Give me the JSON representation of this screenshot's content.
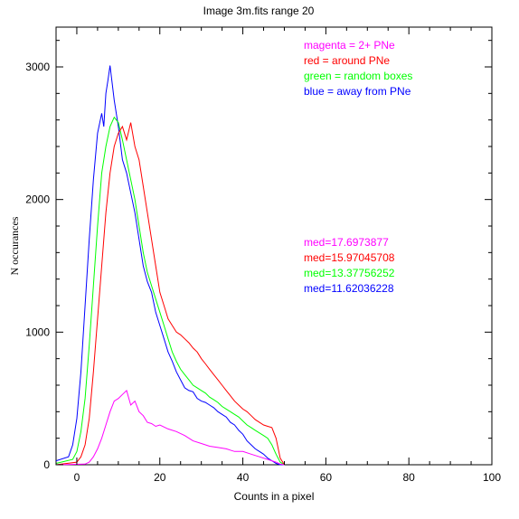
{
  "chart_data": {
    "type": "line",
    "title": "Image 3m.fits   range 20",
    "xlabel": "Counts in a pixel",
    "ylabel": "N  occurances",
    "xlim": [
      -5,
      100
    ],
    "ylim": [
      0,
      3300
    ],
    "xticks": [
      0,
      20,
      40,
      60,
      80,
      100
    ],
    "yticks": [
      0,
      1000,
      2000,
      3000
    ],
    "legend_position": "top-right",
    "legend": [
      {
        "label": "magenta = 2+ PNe",
        "color": "#ff00ff"
      },
      {
        "label": "red = around PNe",
        "color": "#ff0000"
      },
      {
        "label": "green = random boxes",
        "color": "#00ff00"
      },
      {
        "label": "blue = away from PNe",
        "color": "#0000ff"
      }
    ],
    "medians": [
      {
        "label": "med=17.6973877",
        "color": "#ff00ff"
      },
      {
        "label": "med=15.97045708",
        "color": "#ff0000"
      },
      {
        "label": "med=13.37756252",
        "color": "#00ff00"
      },
      {
        "label": "med=11.62036228",
        "color": "#0000ff"
      }
    ],
    "series": [
      {
        "color": "#0000ff",
        "x": [
          -5,
          -2,
          -1,
          0,
          1,
          2,
          3,
          4,
          5,
          6,
          6.5,
          7,
          7.5,
          8,
          8.5,
          9,
          10,
          11,
          12,
          13,
          14,
          15,
          16,
          17,
          18,
          19,
          20,
          21,
          22,
          23,
          24,
          25,
          26,
          27,
          28,
          29,
          30,
          31,
          32,
          33,
          34,
          35,
          36,
          37,
          38,
          39,
          40,
          41,
          42,
          43,
          44,
          45,
          46,
          47,
          48,
          49,
          50
        ],
        "y": [
          30,
          60,
          150,
          350,
          700,
          1200,
          1700,
          2150,
          2500,
          2650,
          2550,
          2800,
          2900,
          3010,
          2880,
          2750,
          2550,
          2300,
          2200,
          2050,
          1900,
          1700,
          1500,
          1380,
          1300,
          1150,
          1050,
          950,
          850,
          780,
          700,
          640,
          580,
          560,
          550,
          500,
          480,
          470,
          450,
          430,
          400,
          380,
          360,
          320,
          300,
          260,
          230,
          180,
          150,
          120,
          100,
          80,
          50,
          30,
          10,
          0,
          0
        ]
      },
      {
        "color": "#00ff00",
        "x": [
          -5,
          -1,
          0,
          1,
          2,
          3,
          4,
          5,
          6,
          7,
          8,
          9,
          10,
          11,
          12,
          13,
          14,
          15,
          16,
          17,
          18,
          19,
          20,
          21,
          22,
          23,
          24,
          25,
          26,
          27,
          28,
          29,
          30,
          31,
          32,
          33,
          34,
          35,
          36,
          37,
          38,
          39,
          40,
          41,
          42,
          43,
          44,
          45,
          46,
          47,
          48,
          49,
          50
        ],
        "y": [
          10,
          40,
          100,
          250,
          500,
          900,
          1350,
          1800,
          2200,
          2400,
          2550,
          2620,
          2580,
          2450,
          2300,
          2150,
          2000,
          1800,
          1600,
          1450,
          1350,
          1250,
          1150,
          1050,
          950,
          850,
          780,
          720,
          680,
          640,
          600,
          580,
          560,
          540,
          510,
          490,
          470,
          440,
          420,
          400,
          380,
          360,
          330,
          300,
          280,
          260,
          240,
          220,
          200,
          150,
          80,
          20,
          0
        ]
      },
      {
        "color": "#ff0000",
        "x": [
          -5,
          0,
          1,
          2,
          3,
          4,
          5,
          6,
          7,
          8,
          9,
          10,
          11,
          12,
          13,
          14,
          15,
          16,
          17,
          18,
          19,
          20,
          21,
          22,
          23,
          24,
          25,
          26,
          27,
          28,
          29,
          30,
          31,
          32,
          33,
          34,
          35,
          36,
          37,
          38,
          39,
          40,
          41,
          42,
          43,
          44,
          45,
          46,
          47,
          48,
          49,
          50
        ],
        "y": [
          0,
          20,
          60,
          150,
          350,
          700,
          1100,
          1500,
          1900,
          2200,
          2400,
          2500,
          2550,
          2450,
          2580,
          2400,
          2300,
          2100,
          1900,
          1700,
          1500,
          1300,
          1200,
          1100,
          1050,
          1000,
          980,
          950,
          920,
          880,
          850,
          800,
          760,
          720,
          680,
          640,
          600,
          560,
          520,
          480,
          450,
          420,
          400,
          370,
          340,
          320,
          300,
          290,
          280,
          200,
          50,
          0
        ]
      },
      {
        "color": "#ff00ff",
        "x": [
          -5,
          2,
          3,
          4,
          5,
          6,
          7,
          8,
          9,
          10,
          11,
          12,
          13,
          14,
          15,
          16,
          17,
          18,
          19,
          20,
          22,
          24,
          26,
          28,
          30,
          32,
          34,
          36,
          38,
          40,
          42,
          44,
          46,
          48,
          49,
          50
        ],
        "y": [
          0,
          5,
          20,
          60,
          120,
          200,
          300,
          400,
          480,
          500,
          530,
          560,
          450,
          480,
          400,
          370,
          320,
          310,
          290,
          300,
          270,
          250,
          220,
          180,
          160,
          140,
          130,
          120,
          100,
          100,
          80,
          60,
          40,
          20,
          5,
          0
        ]
      }
    ]
  }
}
